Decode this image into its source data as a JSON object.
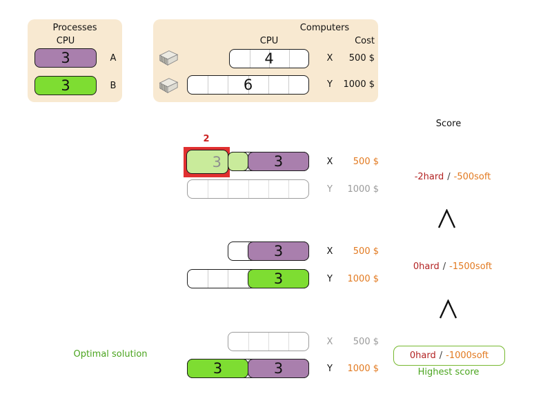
{
  "colors": {
    "panel_bg": "#f8e9d1",
    "process_a_purple": "#a97fad",
    "process_b_green": "#7edd32",
    "infeasible_green_faded": "#c9eb9b",
    "overload_highlight_red": "#e03030",
    "hard_score_red": "#b22222",
    "soft_score_orange": "#e2791f",
    "cost_orange": "#e2791f",
    "inactive_gray": "#9a9a9a",
    "best_green": "#4aa41e"
  },
  "processes_panel": {
    "title": "Processes",
    "cpu_header": "CPU",
    "items": [
      {
        "label": "A",
        "cpu": "3"
      },
      {
        "label": "B",
        "cpu": "3"
      }
    ]
  },
  "computers_panel": {
    "title": "Computers",
    "cpu_header": "CPU",
    "cost_header": "Cost",
    "items": [
      {
        "label": "X",
        "cpu_capacity": "4",
        "cost": "500 $"
      },
      {
        "label": "Y",
        "cpu_capacity": "6",
        "cost": "1000 $"
      }
    ]
  },
  "score_column": {
    "header": "Score"
  },
  "solutions": [
    {
      "overload_amount": "2",
      "x": {
        "label": "X",
        "cost": "500 $"
      },
      "y": {
        "label": "Y",
        "cost": "1000 $"
      },
      "process_b_cpu": "3",
      "process_a_cpu": "3",
      "score": {
        "hard": "-2hard",
        "separator": "/",
        "soft": "-500soft"
      }
    },
    {
      "x": {
        "label": "X",
        "cost": "500 $"
      },
      "y": {
        "label": "Y",
        "cost": "1000 $"
      },
      "process_a_cpu": "3",
      "process_b_cpu": "3",
      "score": {
        "hard": "0hard",
        "separator": "/",
        "soft": "-1500soft"
      }
    },
    {
      "optimal_label": "Optimal solution",
      "x": {
        "label": "X",
        "cost": "500 $"
      },
      "y": {
        "label": "Y",
        "cost": "1000 $"
      },
      "process_b_cpu": "3",
      "process_a_cpu": "3",
      "score": {
        "hard": "0hard",
        "separator": "/",
        "soft": "-1000soft"
      },
      "note": "Highest score"
    }
  ]
}
